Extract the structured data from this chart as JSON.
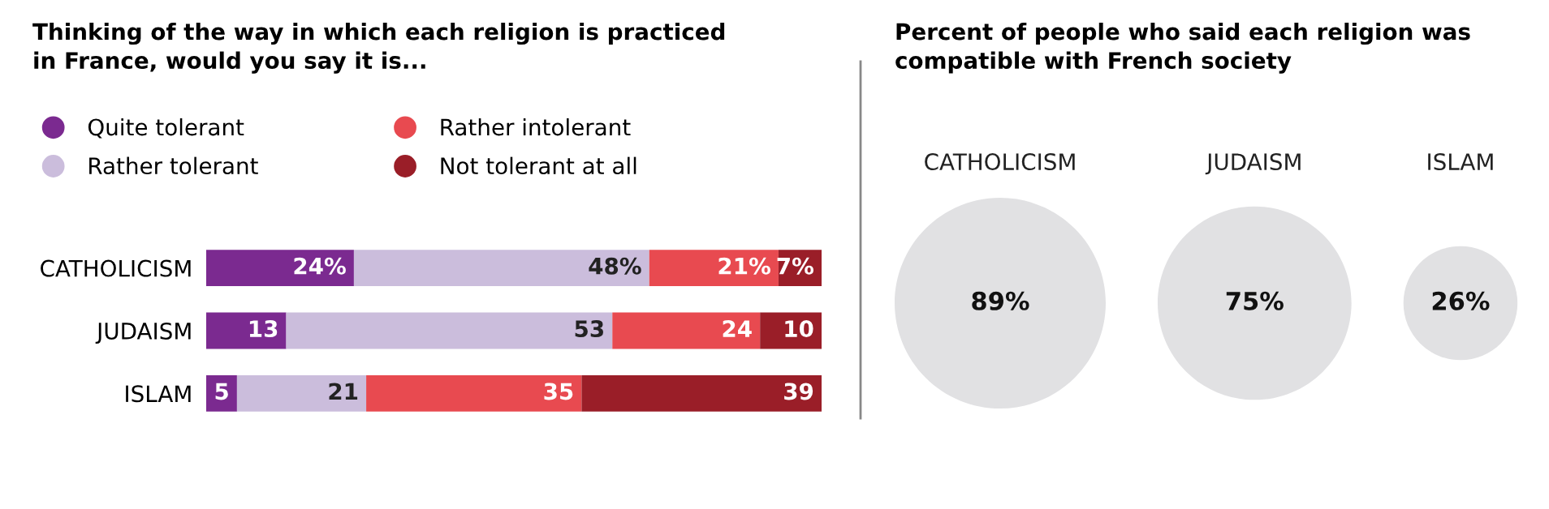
{
  "chart_data": [
    {
      "type": "bar",
      "orientation": "horizontal",
      "stacked": true,
      "title": "Thinking of the way in which each religion is practiced\nin France, would you say it is...",
      "categories": [
        "CATHOLICISM",
        "JUDAISM",
        "ISLAM"
      ],
      "legend": "top",
      "grid": false,
      "tick_labels": "y",
      "xlim": [
        0,
        100
      ],
      "series": [
        {
          "name": "Quite tolerant",
          "color": "#7b2a90",
          "values": [
            24,
            13,
            5
          ],
          "value_labels": [
            "24%",
            "13",
            "5"
          ]
        },
        {
          "name": "Rather tolerant",
          "color": "#cbbddc",
          "values": [
            48,
            53,
            21
          ],
          "value_labels": [
            "48%",
            "53",
            "21"
          ]
        },
        {
          "name": "Rather intolerant",
          "color": "#e84a50",
          "values": [
            21,
            24,
            35
          ],
          "value_labels": [
            "21%",
            "24",
            "35"
          ]
        },
        {
          "name": "Not tolerant at all",
          "color": "#9a1e28",
          "values": [
            7,
            10,
            39
          ],
          "value_labels": [
            "7%",
            "10",
            "39"
          ]
        }
      ]
    },
    {
      "type": "other",
      "title": "Percent of people who said each religion was\ncompatible with French society",
      "categories": [
        "CATHOLICISM",
        "JUDAISM",
        "ISLAM"
      ],
      "values": [
        89,
        75,
        26
      ],
      "value_labels": [
        "89%",
        "75%",
        "26%"
      ],
      "color": "#e1e1e3"
    }
  ]
}
